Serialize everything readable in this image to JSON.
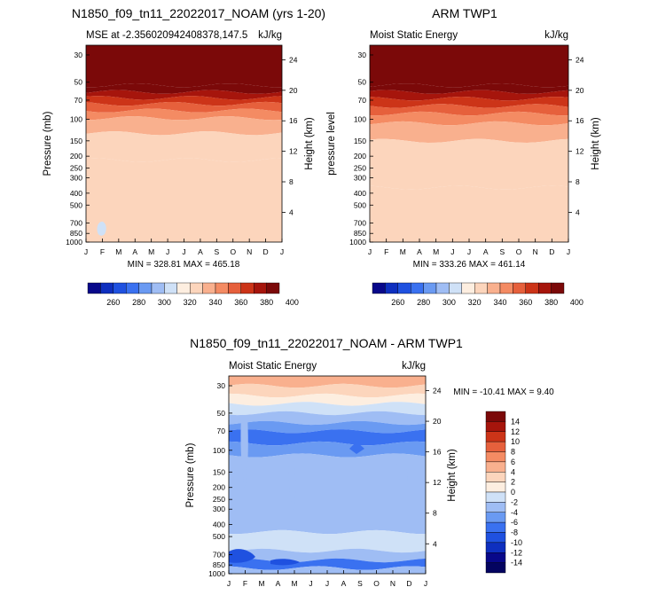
{
  "chart_data": [
    {
      "type": "heatmap",
      "panel": "model",
      "title": "N1850_f09_tn11_22022017_NOAM (yrs 1-20)",
      "left_subtitle": "MSE at -2.356020942408378,147.5",
      "right_subtitle": "kJ/kg",
      "ylabel": "Pressure (mb)",
      "ylabel_right": "Height (km)",
      "x_ticks": [
        "J",
        "F",
        "M",
        "A",
        "M",
        "J",
        "J",
        "A",
        "S",
        "O",
        "N",
        "D",
        "J"
      ],
      "y_ticks": [
        "30",
        "50",
        "70",
        "100",
        "150",
        "200",
        "250",
        "300",
        "400",
        "500",
        "700",
        "850",
        "1000"
      ],
      "y_ticks_right": [
        "24",
        "20",
        "16",
        "12",
        "8",
        "4"
      ],
      "min_max_text": "MIN = 328.81 MAX = 465.18",
      "min": 328.81,
      "max": 465.18,
      "levels_kJkg": [
        {
          "upper_p": 25,
          "lower_p": 53,
          "value": 405
        },
        {
          "upper_p": 53,
          "lower_p": 60,
          "value": 395
        },
        {
          "upper_p": 60,
          "lower_p": 67,
          "value": 385
        },
        {
          "upper_p": 67,
          "lower_p": 75,
          "value": 375
        },
        {
          "upper_p": 75,
          "lower_p": 85,
          "value": 365
        },
        {
          "upper_p": 85,
          "lower_p": 98,
          "value": 355
        },
        {
          "upper_p": 98,
          "lower_p": 130,
          "value": 345
        },
        {
          "upper_p": 130,
          "lower_p": 215,
          "value": 335
        },
        {
          "upper_p": 215,
          "lower_p": 1000,
          "value": 330
        }
      ],
      "colorbar_labels": [
        "260",
        "280",
        "300",
        "320",
        "340",
        "360",
        "380",
        "400"
      ]
    },
    {
      "type": "heatmap",
      "panel": "observation",
      "title": "ARM TWP1",
      "left_subtitle": "Moist Static Energy",
      "right_subtitle": "kJ/kg",
      "ylabel": "pressure level",
      "ylabel_right": "Height (km)",
      "x_ticks": [
        "J",
        "F",
        "M",
        "A",
        "M",
        "J",
        "J",
        "A",
        "S",
        "O",
        "N",
        "D",
        "J"
      ],
      "y_ticks": [
        "30",
        "50",
        "70",
        "100",
        "150",
        "200",
        "250",
        "300",
        "400",
        "500",
        "700",
        "850",
        "1000"
      ],
      "y_ticks_right": [
        "24",
        "20",
        "16",
        "12",
        "8",
        "4"
      ],
      "min_max_text": "MIN = 333.26 MAX = 461.14",
      "min": 333.26,
      "max": 461.14,
      "levels_kJkg": [
        {
          "upper_p": 25,
          "lower_p": 53,
          "value": 405
        },
        {
          "upper_p": 53,
          "lower_p": 60,
          "value": 395
        },
        {
          "upper_p": 60,
          "lower_p": 68,
          "value": 385
        },
        {
          "upper_p": 68,
          "lower_p": 78,
          "value": 375
        },
        {
          "upper_p": 78,
          "lower_p": 90,
          "value": 365
        },
        {
          "upper_p": 90,
          "lower_p": 108,
          "value": 355
        },
        {
          "upper_p": 108,
          "lower_p": 150,
          "value": 345
        },
        {
          "upper_p": 150,
          "lower_p": 360,
          "value": 335
        },
        {
          "upper_p": 360,
          "lower_p": 1000,
          "value": 330
        }
      ],
      "colorbar_labels": [
        "260",
        "280",
        "300",
        "320",
        "340",
        "360",
        "380",
        "400"
      ]
    },
    {
      "type": "heatmap",
      "panel": "difference",
      "title": "N1850_f09_tn11_22022017_NOAM - ARM TWP1",
      "left_subtitle": "Moist Static Energy",
      "right_subtitle": "kJ/kg",
      "ylabel": "Pressure (mb)",
      "ylabel_right": "Height (km)",
      "x_ticks": [
        "J",
        "F",
        "M",
        "A",
        "M",
        "J",
        "J",
        "A",
        "S",
        "O",
        "N",
        "D",
        "J"
      ],
      "y_ticks": [
        "30",
        "50",
        "70",
        "100",
        "150",
        "200",
        "250",
        "300",
        "400",
        "500",
        "700",
        "850",
        "1000"
      ],
      "y_ticks_right": [
        "24",
        "20",
        "16",
        "12",
        "8",
        "4"
      ],
      "min_max_text": "MIN = -10.41 MAX =  9.40",
      "min": -10.41,
      "max": 9.4,
      "levels_kJkg": [
        {
          "upper_p": 25,
          "lower_p": 30,
          "value": 5
        },
        {
          "upper_p": 30,
          "lower_p": 36,
          "value": 3
        },
        {
          "upper_p": 36,
          "lower_p": 42,
          "value": 1
        },
        {
          "upper_p": 42,
          "lower_p": 50,
          "value": -1
        },
        {
          "upper_p": 50,
          "lower_p": 60,
          "value": -3
        },
        {
          "upper_p": 60,
          "lower_p": 70,
          "value": -5
        },
        {
          "upper_p": 70,
          "lower_p": 88,
          "value": -7
        },
        {
          "upper_p": 88,
          "lower_p": 110,
          "value": -5
        },
        {
          "upper_p": 110,
          "lower_p": 460,
          "value": -3
        },
        {
          "upper_p": 460,
          "lower_p": 650,
          "value": -1
        },
        {
          "upper_p": 650,
          "lower_p": 780,
          "value": -3
        },
        {
          "upper_p": 780,
          "lower_p": 900,
          "value": -7
        },
        {
          "upper_p": 900,
          "lower_p": 1000,
          "value": -3
        }
      ],
      "colorbar_labels": [
        "14",
        "12",
        "10",
        "8",
        "6",
        "4",
        "2",
        "0",
        "-2",
        "-4",
        "-6",
        "-8",
        "-10",
        "-12",
        "-14"
      ]
    }
  ],
  "colors": {
    "abs_scale": [
      "#08088a",
      "#0e2fbf",
      "#1f51e0",
      "#3a71f0",
      "#6a9af2",
      "#9fbdf4",
      "#cfe1f7",
      "#fdeee0",
      "#fcd5bc",
      "#f9b08e",
      "#f48b63",
      "#e6603c",
      "#cc3418",
      "#a6150c",
      "#7b0909"
    ],
    "diff_scale": [
      "#7b0909",
      "#a6150c",
      "#cc3418",
      "#e6603c",
      "#f48b63",
      "#f9b08e",
      "#fcd5bc",
      "#fdeee0",
      "#cfe1f7",
      "#9fbdf4",
      "#6a9af2",
      "#3a71f0",
      "#1f51e0",
      "#0e2fbf",
      "#08088a",
      "#040460"
    ]
  }
}
